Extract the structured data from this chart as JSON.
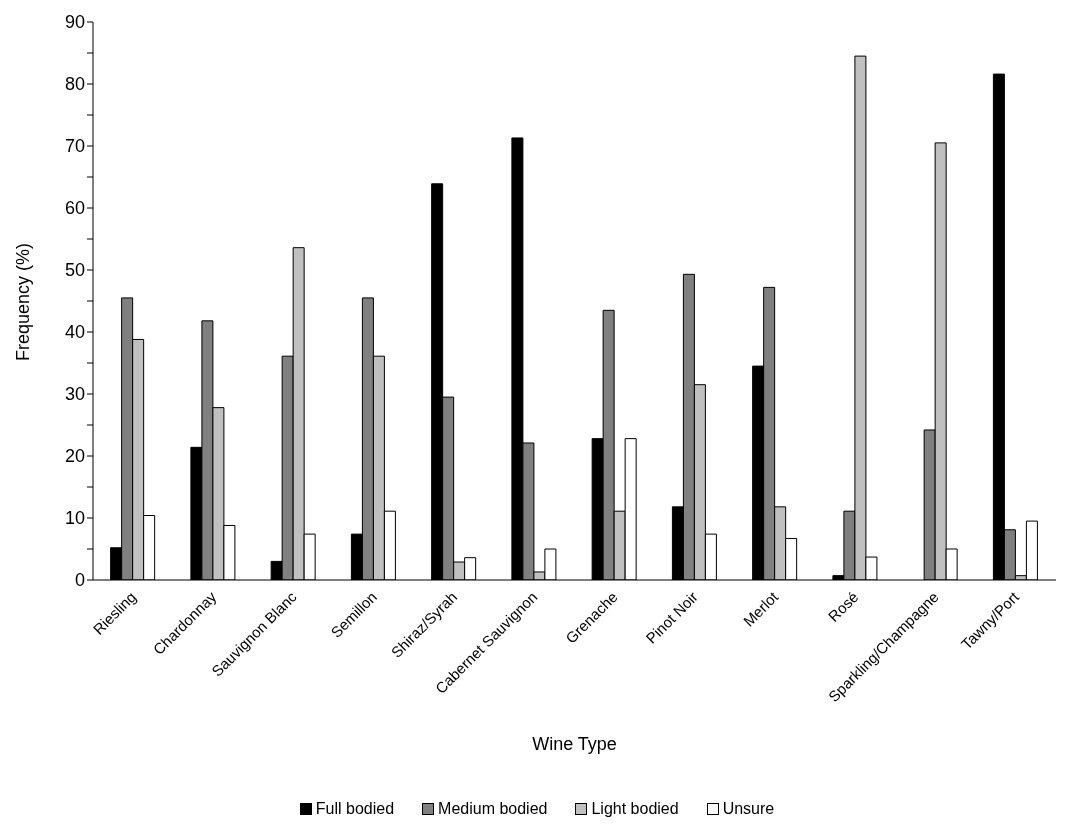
{
  "chart_data": {
    "type": "bar",
    "xlabel": "Wine Type",
    "ylabel": "Frequency (%)",
    "categories": [
      "Riesling",
      "Chardonnay",
      "Sauvignon Blanc",
      "Semillon",
      "Shiraz/Syrah",
      "Cabernet Sauvignon",
      "Grenache",
      "Pinot Noir",
      "Merlot",
      "Rosé",
      "Sparkling/Champagne",
      "Tawny/Port"
    ],
    "series": [
      {
        "name": "Full bodied",
        "color": "#000000",
        "values": [
          5.2,
          21.4,
          3.0,
          7.4,
          63.9,
          71.3,
          22.8,
          11.8,
          34.5,
          0.7,
          0,
          81.6
        ]
      },
      {
        "name": "Medium bodied",
        "color": "#808080",
        "values": [
          45.5,
          41.8,
          36.1,
          45.5,
          29.5,
          22.1,
          43.5,
          49.3,
          47.2,
          11.1,
          24.2,
          8.1
        ]
      },
      {
        "name": "Light bodied",
        "color": "#c0c0c0",
        "values": [
          38.8,
          27.8,
          53.6,
          36.1,
          2.9,
          1.3,
          11.1,
          31.5,
          11.8,
          84.5,
          70.5,
          0.7
        ]
      },
      {
        "name": "Unsure",
        "color": "#ffffff",
        "values": [
          10.4,
          8.8,
          7.4,
          11.1,
          3.6,
          5.0,
          22.8,
          7.4,
          6.7,
          3.7,
          5.0,
          9.5
        ]
      }
    ],
    "ylim": [
      0,
      90
    ],
    "yticks": [
      0,
      {
        "value": 5,
        "label": null
      },
      10,
      {
        "value": 15,
        "label": null
      },
      20,
      {
        "value": 25,
        "label": null
      },
      30,
      {
        "value": 35,
        "label": null
      },
      40,
      {
        "value": 45,
        "label": null
      },
      50,
      {
        "value": 55,
        "label": null
      },
      60,
      {
        "value": 65,
        "label": null
      },
      70,
      {
        "value": 75,
        "label": null
      },
      80,
      {
        "value": 85,
        "label": null
      },
      90
    ],
    "grid": false,
    "legend": "bottom"
  }
}
